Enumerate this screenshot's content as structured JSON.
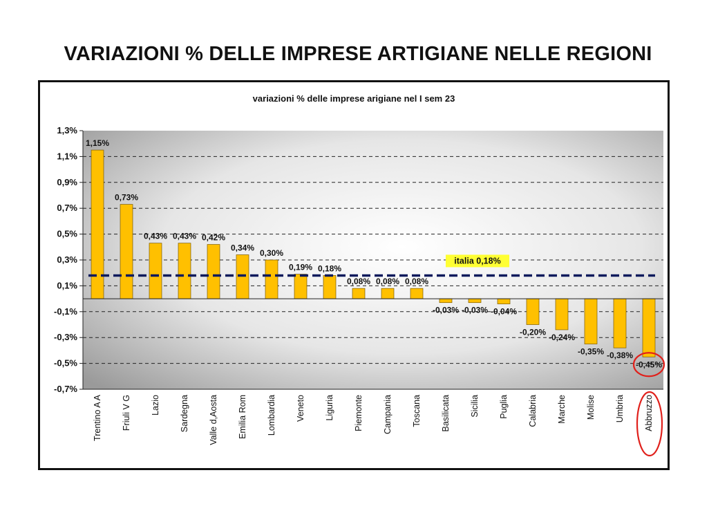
{
  "page_title": "VARIAZIONI % DELLE IMPRESE ARTIGIANE NELLE REGIONI",
  "chart_data": {
    "type": "bar",
    "title": "variazioni % delle imprese arigiane nel I sem 23",
    "xlabel": "",
    "ylabel": "",
    "categories": [
      "Trentino A A",
      "Friuli V G",
      "Lazio",
      "Sardegna",
      "Valle d,Aosta",
      "Emilia Rom",
      "Lombardia",
      "Veneto",
      "Liguria",
      "Piemonte",
      "Campania",
      "Toscana",
      "Basilicata",
      "Sicilia",
      "Puglia",
      "Calabria",
      "Marche",
      "Molise",
      "Umbria",
      "Abbruzzo"
    ],
    "values": [
      1.15,
      0.73,
      0.43,
      0.43,
      0.42,
      0.34,
      0.3,
      0.19,
      0.18,
      0.08,
      0.08,
      0.08,
      -0.03,
      -0.03,
      -0.04,
      -0.2,
      -0.24,
      -0.35,
      -0.38,
      -0.45
    ],
    "value_labels": [
      "1,15%",
      "0,73%",
      "0,43%",
      "0,43%",
      "0,42%",
      "0,34%",
      "0,30%",
      "0,19%",
      "0,18%",
      "0,08%",
      "0,08%",
      "0,08%",
      "-0,03%",
      "-0,03%",
      "-0,04%",
      "-0,20%",
      "-0,24%",
      "-0,35%",
      "-0,38%",
      "-0,45%"
    ],
    "ylim": [
      -0.7,
      1.3
    ],
    "y_ticks": [
      1.3,
      1.1,
      0.9,
      0.7,
      0.5,
      0.3,
      0.1,
      -0.1,
      -0.3,
      -0.5,
      -0.7
    ],
    "y_tick_labels": [
      "1,3%",
      "1,1%",
      "0,9%",
      "0,7%",
      "0,5%",
      "0,3%",
      "0,1%",
      "-0,1%",
      "-0,3%",
      "-0,5%",
      "-0,7%"
    ],
    "grid": "horizontal dashed",
    "average_line": {
      "value": 0.18,
      "label": "italia 0,18%"
    },
    "highlight_category": "Abbruzzo",
    "colors": {
      "bar": "#FFC000",
      "bar_border": "#7a5a00",
      "average_line": "#0c1a5c",
      "average_label_bg": "#FFFF33",
      "highlight": "#e0201b"
    }
  }
}
